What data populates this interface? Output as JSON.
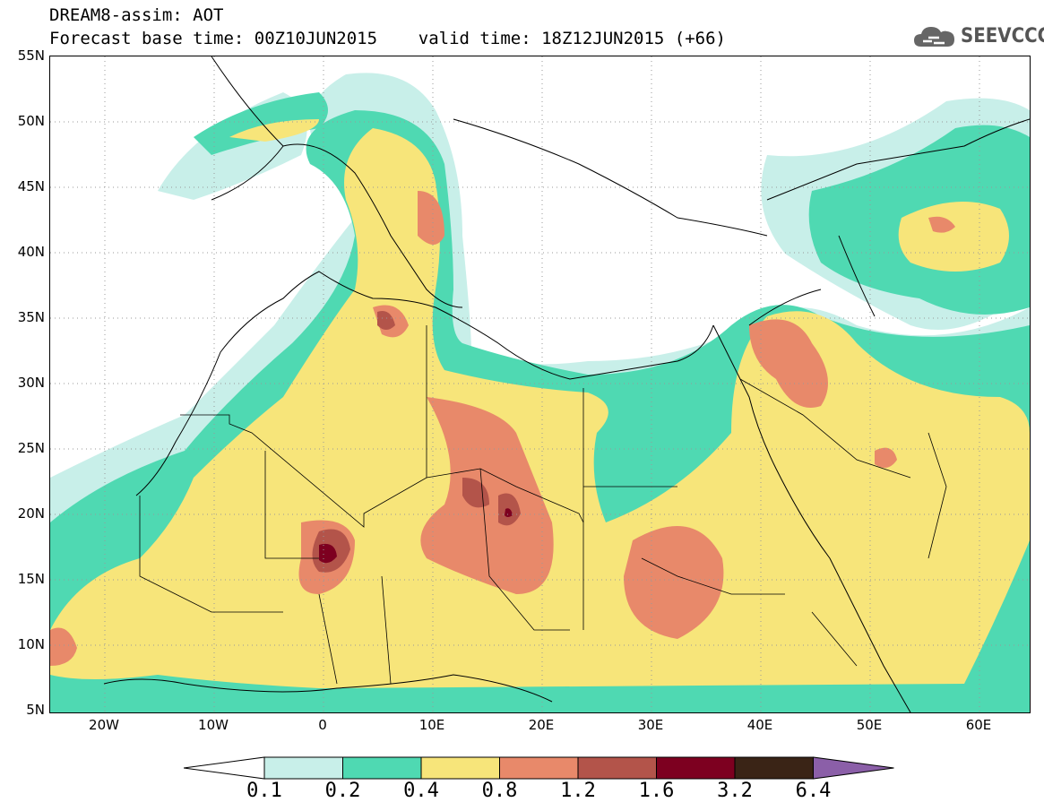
{
  "header": {
    "title_line1": "DREAM8-assim: AOT",
    "title_line2": "Forecast base time: 00Z10JUN2015    valid time: 18Z12JUN2015 (+66)"
  },
  "logo": {
    "text": "SEEVCCC",
    "icon": "cloud-icon"
  },
  "map": {
    "lat_labels": [
      "55N",
      "50N",
      "45N",
      "40N",
      "35N",
      "30N",
      "25N",
      "20N",
      "15N",
      "10N",
      "5N"
    ],
    "lon_labels": [
      "20W",
      "10W",
      "0",
      "10E",
      "20E",
      "30E",
      "40E",
      "50E",
      "60E"
    ]
  },
  "colorbar": {
    "labels": [
      "0.1",
      "0.2",
      "0.4",
      "0.8",
      "1.2",
      "1.6",
      "3.2",
      "6.4"
    ],
    "colors": [
      "#c8efe9",
      "#4fd9b2",
      "#f7e57a",
      "#e8896a",
      "#b3544a",
      "#7d0020",
      "#3a2416",
      "#8b5fa8"
    ]
  }
}
